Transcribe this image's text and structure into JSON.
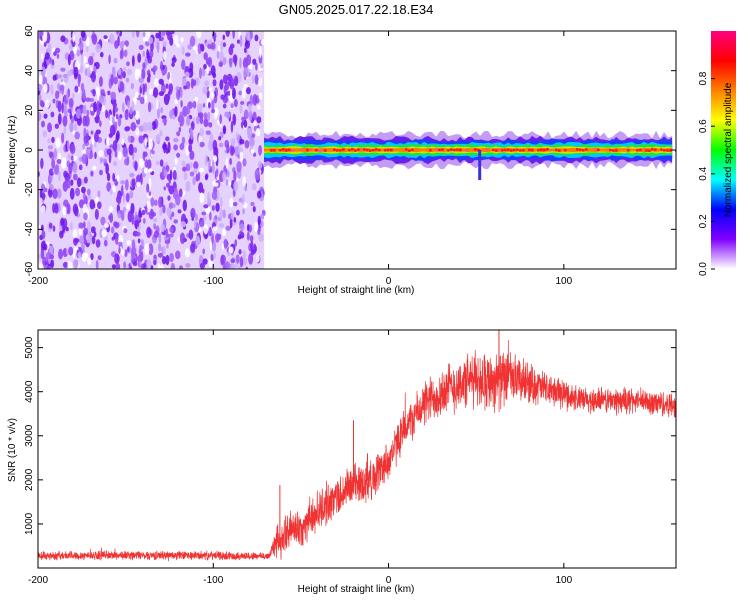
{
  "title": "GN05.2025.017.22.18.E34",
  "chart_data": [
    {
      "type": "heatmap",
      "name": "spectrogram",
      "xlabel": "Height of straight line (km)",
      "ylabel": "Frequency (Hz)",
      "xlim": [
        -200,
        164
      ],
      "ylim": [
        -60,
        60
      ],
      "xticks": [
        "-200",
        "-100",
        "0",
        "100"
      ],
      "yticks": [
        "60",
        "40",
        "20",
        "0",
        "-20",
        "-40",
        "-60"
      ],
      "noise_region_x": [
        -200,
        -71
      ],
      "signal_band": {
        "x_start": -71,
        "x_end": 164,
        "center_hz": 0,
        "half_width_hz": 3
      },
      "colorbar": {
        "label": "Normalized spectral amplitude",
        "range": [
          0,
          1
        ],
        "ticks": [
          "0.0",
          "0.2",
          "0.4",
          "0.6",
          "0.8"
        ],
        "colors": [
          "#ffffff",
          "#8000ff",
          "#0000ff",
          "#00ffff",
          "#00ff00",
          "#ffff00",
          "#ff8000",
          "#ff0000",
          "#ff0080"
        ]
      }
    },
    {
      "type": "line",
      "name": "snr",
      "xlabel": "Height of straight line (km)",
      "ylabel": "SNR (10 * v/v)",
      "xlim": [
        -200,
        164
      ],
      "ylim": [
        0,
        5400
      ],
      "xticks": [
        "-200",
        "-100",
        "0",
        "100"
      ],
      "yticks": [
        "5000",
        "4000",
        "3000",
        "2000",
        "1000"
      ],
      "color": "#f03232",
      "series": [
        {
          "name": "SNR",
          "x": [
            -200,
            -150,
            -100,
            -80,
            -68,
            -64,
            -62,
            -58,
            -50,
            -40,
            -30,
            -20,
            -10,
            0,
            10,
            20,
            30,
            40,
            50,
            60,
            70,
            80,
            90,
            100,
            110,
            120,
            130,
            140,
            150,
            164
          ],
          "values": [
            280,
            290,
            280,
            270,
            270,
            700,
            500,
            850,
            900,
            1300,
            1600,
            1900,
            2000,
            2450,
            3200,
            3700,
            4000,
            4150,
            4300,
            4250,
            4300,
            4200,
            4050,
            3950,
            3800,
            3800,
            3800,
            3800,
            3750,
            3700
          ],
          "noise_amplitude": [
            120,
            120,
            120,
            110,
            110,
            500,
            400,
            500,
            500,
            550,
            550,
            550,
            550,
            550,
            500,
            600,
            700,
            700,
            750,
            800,
            700,
            550,
            450,
            400,
            350,
            350,
            350,
            350,
            350,
            350
          ]
        }
      ]
    }
  ]
}
